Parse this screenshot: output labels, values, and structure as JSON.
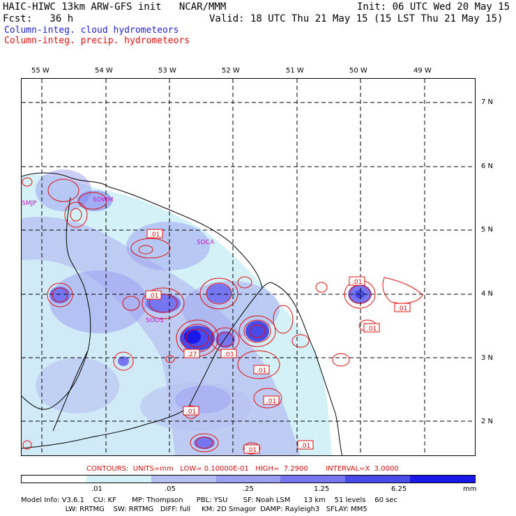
{
  "header": {
    "line1_left": "HAIC-HIWC 13km ARW-GFS init   NCAR/MMM",
    "line1_right": "Init: 06 UTC Wed 20 May 15",
    "line2_left": "Fcst:   36 h",
    "line2_right": "Valid: 18 UTC Thu 21 May 15 (15 LST Thu 21 May 15)",
    "field1": "Column-integ. cloud hydrometeors",
    "field2": "Column-integ. precip. hydrometeors"
  },
  "colors": {
    "cloud_text": "#1f1fd6",
    "precip_text": "#e01010",
    "station_text": "#c21bc2",
    "grid": "#000000"
  },
  "longitude_labels": [
    "55 W",
    "54 W",
    "53 W",
    "52 W",
    "51 W",
    "50 W",
    "49 W"
  ],
  "latitude_labels": [
    "7 N",
    "6 N",
    "5 N",
    "4 N",
    "3 N",
    "2 N"
  ],
  "stations": [
    "SMJP",
    "SOCA",
    "SOOS",
    "SOWM"
  ],
  "contour_labels": [
    ".01",
    ".01",
    ".01",
    ".01",
    ".27",
    ".03",
    ".01",
    ".01",
    ".01",
    ".01",
    ".01",
    ".01"
  ],
  "contours_line": "CONTOURS:  UNITS=mm   LOW= 0.10000E-01   HIGH=  7.2900        INTERVAL=X  3.0000",
  "colorbar": {
    "labels": [
      ".01",
      ".05",
      ".25",
      "1.25",
      "6.25",
      "mm"
    ],
    "colors": [
      "#ffffff",
      "#d4f1f8",
      "#b7bff2",
      "#9c9ff0",
      "#7676f0",
      "#4a4ae8",
      "#1818e8"
    ]
  },
  "model_info": {
    "line1": "Model Info: V3.6.1    CU: KF       MP: Thompson      PBL: YSU       SF: Noah LSM      13 km    51 levels    60 sec",
    "line2": "                    LW: RRTMG    SW: RRTMG   DIFF: full     KM: 2D Smagor  DAMP: Rayleigh3   SFLAY: MM5"
  }
}
